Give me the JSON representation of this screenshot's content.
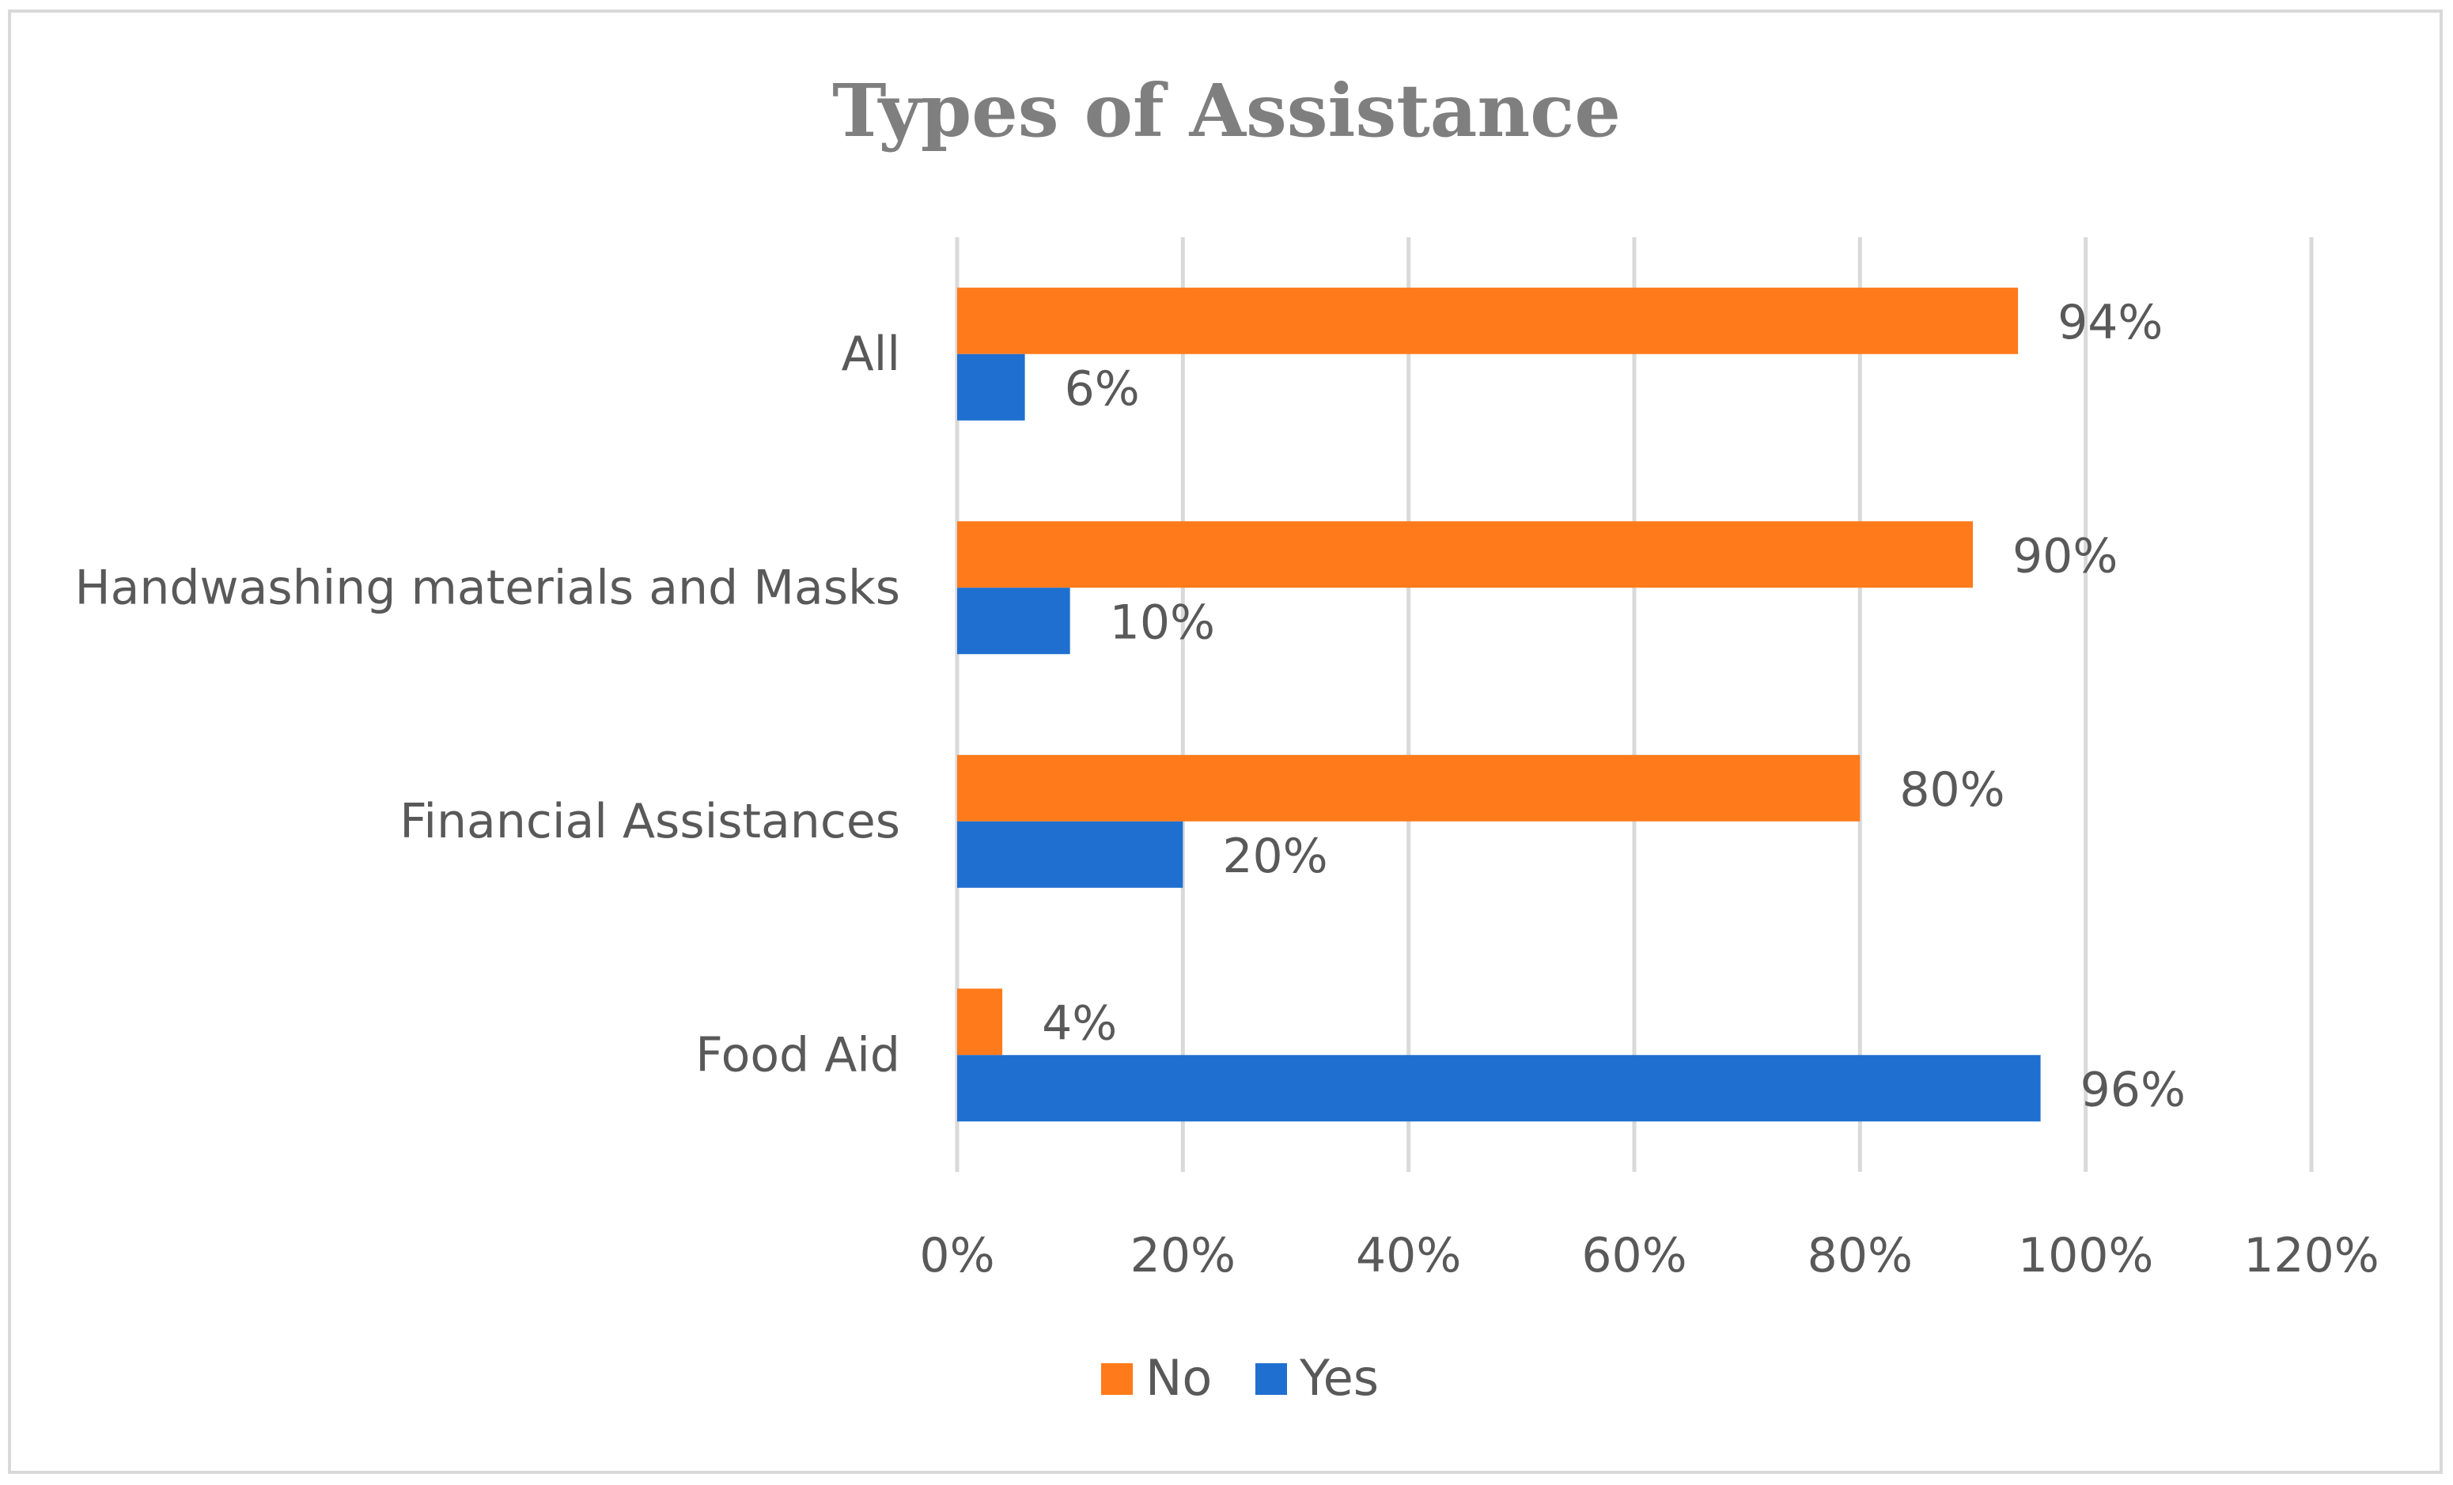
{
  "chart_data": {
    "type": "bar",
    "orientation": "horizontal",
    "title": "Types of Assistance",
    "categories": [
      "Food Aid",
      "Financial Assistances",
      "Handwashing materials and Masks",
      "All"
    ],
    "series": [
      {
        "name": "Yes",
        "color": "#1f6fd0",
        "values": [
          96,
          20,
          10,
          6
        ],
        "labels": [
          "96%",
          "20%",
          "10%",
          "6%"
        ]
      },
      {
        "name": "No",
        "color": "#ff7a1a",
        "values": [
          4,
          80,
          90,
          94
        ],
        "labels": [
          "4%",
          "80%",
          "90%",
          "94%"
        ]
      }
    ],
    "x_axis": {
      "min": 0,
      "max": 120,
      "ticks": [
        0,
        20,
        40,
        60,
        80,
        100,
        120
      ],
      "tick_labels": [
        "0%",
        "20%",
        "40%",
        "60%",
        "80%",
        "100%",
        "120%"
      ]
    },
    "xlabel": "",
    "ylabel": "",
    "grid": true,
    "legend": {
      "position": "bottom",
      "order": [
        "No",
        "Yes"
      ]
    }
  }
}
